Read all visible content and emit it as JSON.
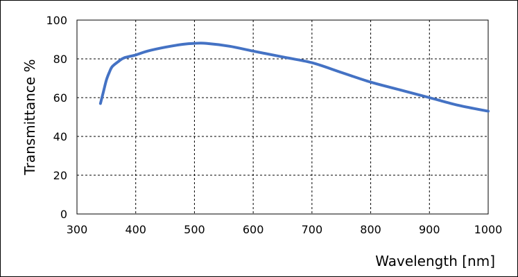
{
  "chart_data": {
    "type": "line",
    "title": "",
    "xlabel": "Wavelength [nm]",
    "ylabel": "Transmittance %",
    "xlim": [
      300,
      1000
    ],
    "ylim": [
      0,
      100
    ],
    "xticks": [
      300,
      400,
      500,
      600,
      700,
      800,
      900,
      1000
    ],
    "yticks": [
      0,
      20,
      40,
      60,
      80,
      100
    ],
    "xtick_labels": [
      "300",
      "400",
      "500",
      "600",
      "700",
      "800",
      "900",
      "1000"
    ],
    "ytick_labels": [
      "0",
      "20",
      "40",
      "60",
      "80",
      "100"
    ],
    "grid": true,
    "grid_style": "dashed",
    "legend": "none",
    "series": [
      {
        "color": "#4472c4",
        "points": [
          [
            340,
            57
          ],
          [
            345,
            63
          ],
          [
            350,
            69
          ],
          [
            355,
            73
          ],
          [
            360,
            76
          ],
          [
            370,
            78.5
          ],
          [
            380,
            80.5
          ],
          [
            400,
            82
          ],
          [
            420,
            84
          ],
          [
            450,
            86
          ],
          [
            480,
            87.5
          ],
          [
            500,
            88
          ],
          [
            520,
            88
          ],
          [
            560,
            86.5
          ],
          [
            600,
            84
          ],
          [
            650,
            81
          ],
          [
            700,
            78
          ],
          [
            750,
            73
          ],
          [
            800,
            68
          ],
          [
            850,
            64
          ],
          [
            900,
            60
          ],
          [
            950,
            56
          ],
          [
            1000,
            53
          ]
        ]
      }
    ]
  }
}
